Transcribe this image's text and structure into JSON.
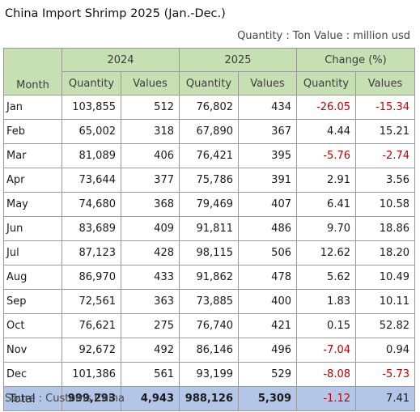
{
  "title": "China Import Shrimp 2025 (Jan.-Dec.)",
  "units": "Quantity : Ton Value : million usd",
  "header": {
    "month": "Month",
    "year_2024": "2024",
    "year_2025": "2025",
    "change": "Change (%)",
    "quantity": "Quantity",
    "values": "Values"
  },
  "rows": [
    {
      "month": "Jan",
      "q2024": "103,855",
      "v2024": "512",
      "q2025": "76,802",
      "v2025": "434",
      "cq": "-26.05",
      "cv": "-15.34"
    },
    {
      "month": "Feb",
      "q2024": "65,002",
      "v2024": "318",
      "q2025": "67,890",
      "v2025": "367",
      "cq": "4.44",
      "cv": "15.21"
    },
    {
      "month": "Mar",
      "q2024": "81,089",
      "v2024": "406",
      "q2025": "76,421",
      "v2025": "395",
      "cq": "-5.76",
      "cv": "-2.74"
    },
    {
      "month": "Apr",
      "q2024": "73,644",
      "v2024": "377",
      "q2025": "75,786",
      "v2025": "391",
      "cq": "2.91",
      "cv": "3.56"
    },
    {
      "month": "May",
      "q2024": "74,680",
      "v2024": "368",
      "q2025": "79,469",
      "v2025": "407",
      "cq": "6.41",
      "cv": "10.58"
    },
    {
      "month": "Jun",
      "q2024": "83,689",
      "v2024": "409",
      "q2025": "91,811",
      "v2025": "486",
      "cq": "9.70",
      "cv": "18.86"
    },
    {
      "month": "Jul",
      "q2024": "87,123",
      "v2024": "428",
      "q2025": "98,115",
      "v2025": "506",
      "cq": "12.62",
      "cv": "18.20"
    },
    {
      "month": "Aug",
      "q2024": "86,970",
      "v2024": "433",
      "q2025": "91,862",
      "v2025": "478",
      "cq": "5.62",
      "cv": "10.49"
    },
    {
      "month": "Sep",
      "q2024": "72,561",
      "v2024": "363",
      "q2025": "73,885",
      "v2025": "400",
      "cq": "1.83",
      "cv": "10.11"
    },
    {
      "month": "Oct",
      "q2024": "76,621",
      "v2024": "275",
      "q2025": "76,740",
      "v2025": "421",
      "cq": "0.15",
      "cv": "52.82"
    },
    {
      "month": "Nov",
      "q2024": "92,672",
      "v2024": "492",
      "q2025": "86,146",
      "v2025": "496",
      "cq": "-7.04",
      "cv": "0.94"
    },
    {
      "month": "Dec",
      "q2024": "101,386",
      "v2024": "561",
      "q2025": "93,199",
      "v2025": "529",
      "cq": "-8.08",
      "cv": "-5.73"
    }
  ],
  "total": {
    "month": "Total",
    "q2024": "999,293",
    "v2024": "4,943",
    "q2025": "988,126",
    "v2025": "5,309",
    "cq": "-1.12",
    "cv": "7.41"
  },
  "source": "Soure : Customs China",
  "colors": {
    "header_bg": "#c6e0b4",
    "total_bg": "#b4c6e7",
    "negative": "#c00000"
  }
}
